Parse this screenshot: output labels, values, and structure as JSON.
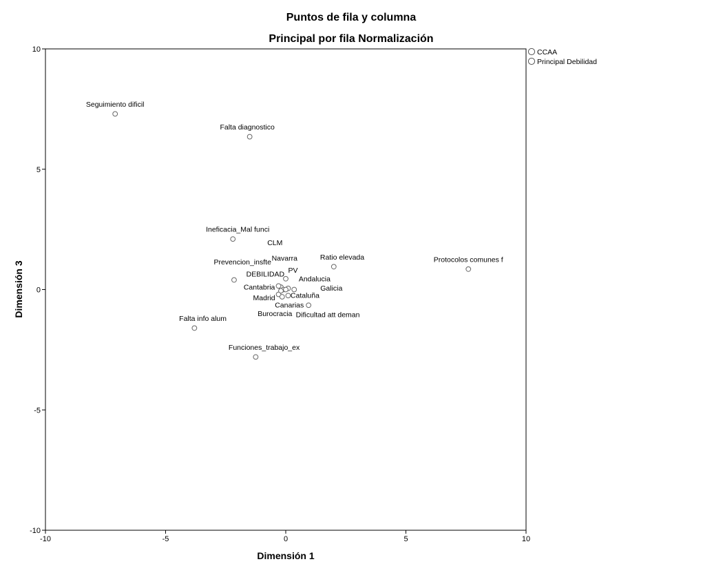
{
  "chart_data": {
    "type": "scatter",
    "title": "Puntos de fila y columna",
    "subtitle": "Principal por fila Normalización",
    "xlabel": "Dimensión 1",
    "ylabel": "Dimensión 3",
    "xlim": [
      -10,
      10
    ],
    "ylim": [
      -10,
      10
    ],
    "xticks": [
      "-10",
      "-5",
      "0",
      "5",
      "10"
    ],
    "yticks": [
      "10",
      "5",
      "0",
      "-5",
      "-10"
    ],
    "grid": false,
    "legend_position": "top-right outside",
    "legend": [
      "CCAA",
      "Principal Debilidad"
    ],
    "series": [
      {
        "name": "CCAA",
        "points": [
          {
            "label": "CLM",
            "x": -0.2,
            "y": 0.1
          },
          {
            "label": "Navarra",
            "x": -0.1,
            "y": 0.0
          },
          {
            "label": "PV",
            "x": 0.0,
            "y": 0.45
          },
          {
            "label": "Andalucia",
            "x": 0.35,
            "y": 0.0
          },
          {
            "label": "Galicia",
            "x": 0.1,
            "y": 0.05
          },
          {
            "label": "Cantabria",
            "x": -0.3,
            "y": 0.15
          },
          {
            "label": "Cataluña",
            "x": 0.1,
            "y": -0.25
          },
          {
            "label": "Madrid",
            "x": -0.3,
            "y": -0.2
          },
          {
            "label": "Canarias",
            "x": -0.15,
            "y": -0.3
          }
        ]
      },
      {
        "name": "Principal Debilidad",
        "points": [
          {
            "label": "Seguimiento dificil",
            "x": -7.1,
            "y": 7.3
          },
          {
            "label": "Falta diagnostico",
            "x": -1.5,
            "y": 6.35
          },
          {
            "label": "Ineficacia_Mal funci",
            "x": -2.2,
            "y": 2.1
          },
          {
            "label": "Prevencion_insfte",
            "x": -2.15,
            "y": 0.4
          },
          {
            "label": "DEBILIDAD",
            "x": -0.2,
            "y": -0.05
          },
          {
            "label": "Burocracia",
            "x": 0.0,
            "y": 0.0
          },
          {
            "label": "Dificultad att deman",
            "x": 0.95,
            "y": -0.65
          },
          {
            "label": "Ratio elevada",
            "x": 2.0,
            "y": 0.95
          },
          {
            "label": "Protocolos comunes f",
            "x": 7.6,
            "y": 0.85
          },
          {
            "label": "Falta info alum",
            "x": -3.8,
            "y": -1.6
          },
          {
            "label": "Funciones_trabajo_ex",
            "x": -1.25,
            "y": -2.8
          }
        ]
      }
    ],
    "annotations": [
      {
        "text": "Seguimiento dificil",
        "x": -7.1,
        "y": 7.6
      },
      {
        "text": "Falta diagnostico",
        "x": -1.6,
        "y": 6.65
      },
      {
        "text": "Ineficacia_Mal funci",
        "x": -2.0,
        "y": 2.4
      },
      {
        "text": "CLM",
        "x": -0.45,
        "y": 1.85
      },
      {
        "text": "Navarra",
        "x": -0.05,
        "y": 1.2
      },
      {
        "text": "Prevencion_insfte",
        "x": -1.8,
        "y": 1.05
      },
      {
        "text": "Ratio elevada",
        "x": 2.35,
        "y": 1.25
      },
      {
        "text": "Protocolos comunes f",
        "x": 7.6,
        "y": 1.15
      },
      {
        "text": "PV",
        "x": 0.3,
        "y": 0.7
      },
      {
        "text": "DEBILIDAD",
        "x": -0.85,
        "y": 0.55
      },
      {
        "text": "Andalucia",
        "x": 1.2,
        "y": 0.35
      },
      {
        "text": "Cantabria",
        "x": -1.1,
        "y": 0.0
      },
      {
        "text": "Galicia",
        "x": 1.9,
        "y": -0.05
      },
      {
        "text": "Cataluña",
        "x": 0.8,
        "y": -0.35
      },
      {
        "text": "Madrid",
        "x": -0.9,
        "y": -0.45
      },
      {
        "text": "Canarias",
        "x": 0.15,
        "y": -0.75
      },
      {
        "text": "Burocracia",
        "x": -0.45,
        "y": -1.1
      },
      {
        "text": "Dificultad att deman",
        "x": 1.75,
        "y": -1.15
      },
      {
        "text": "Falta info alum",
        "x": -3.45,
        "y": -1.3
      },
      {
        "text": "Funciones_trabajo_ex",
        "x": -0.9,
        "y": -2.5
      }
    ]
  }
}
